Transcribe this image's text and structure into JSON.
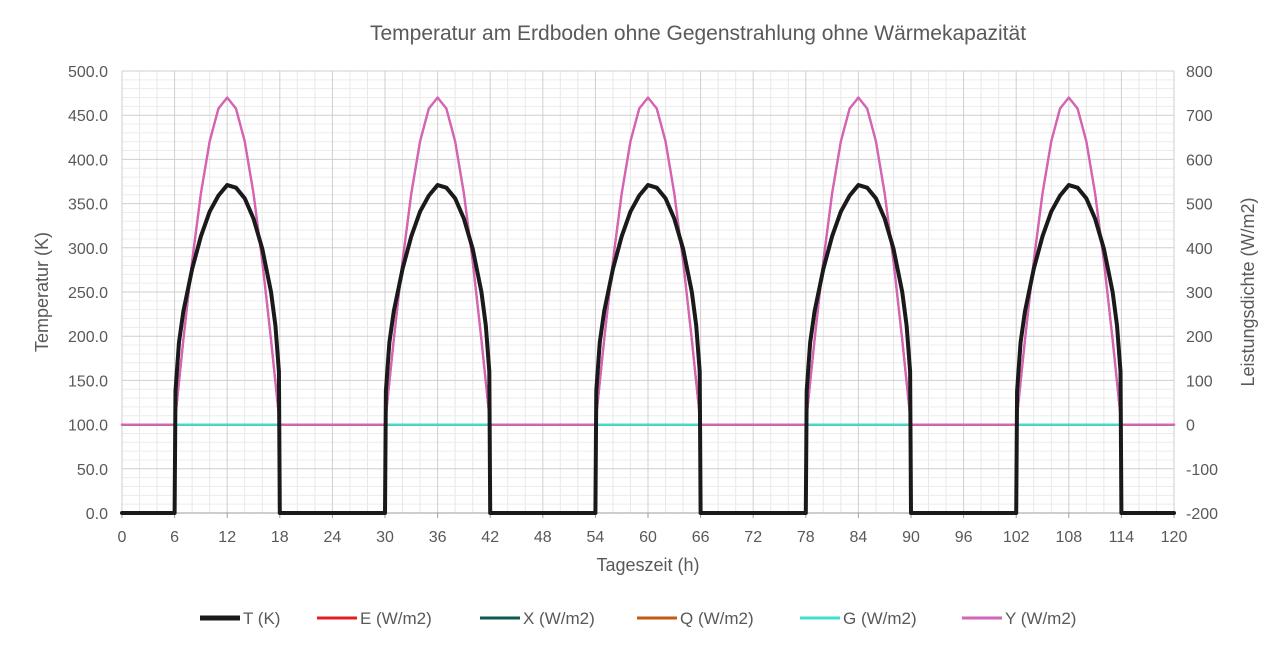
{
  "chart_data": {
    "type": "line",
    "title": "Temperatur am Erdboden ohne Gegenstrahlung ohne Wärmekapazität",
    "xlabel": "Tageszeit (h)",
    "ylabel_left": "Temperatur (K)",
    "ylabel_right": "Leistungsdichte  (W/m2)",
    "xlim": [
      0,
      120
    ],
    "x_ticks": [
      0,
      6,
      12,
      18,
      24,
      30,
      36,
      42,
      48,
      54,
      60,
      66,
      72,
      78,
      84,
      90,
      96,
      102,
      108,
      114,
      120
    ],
    "x_tick_labels": [
      "0",
      "6",
      "12",
      "18",
      "24",
      "30",
      "36",
      "42",
      "48",
      "54",
      "60",
      "66",
      "72",
      "78",
      "84",
      "90",
      "96",
      "102",
      "108",
      "114",
      "120"
    ],
    "ylim_left": [
      0,
      500
    ],
    "y_left_ticks": [
      0,
      50,
      100,
      150,
      200,
      250,
      300,
      350,
      400,
      450,
      500
    ],
    "y_left_tick_labels": [
      "0.0",
      "50.0",
      "100.0",
      "150.0",
      "200.0",
      "250.0",
      "300.0",
      "350.0",
      "400.0",
      "450.0",
      "500.0"
    ],
    "ylim_right": [
      -200,
      800
    ],
    "y_right_ticks": [
      -200,
      -100,
      0,
      100,
      200,
      300,
      400,
      500,
      600,
      700,
      800
    ],
    "y_right_tick_labels": [
      "-200",
      "-100",
      "0",
      "100",
      "200",
      "300",
      "400",
      "500",
      "600",
      "700",
      "800"
    ],
    "grid": true,
    "legend_position": "bottom",
    "series": [
      {
        "name": "T (K)",
        "axis": "left",
        "color": "#1a1a1a",
        "x": [
          0,
          6,
          6.1,
          6.5,
          7,
          8,
          9,
          10,
          11,
          12,
          13,
          14,
          15,
          16,
          17,
          17.5,
          17.9,
          18,
          24,
          30,
          30.1,
          30.5,
          31,
          32,
          33,
          34,
          35,
          36,
          37,
          38,
          39,
          40,
          41,
          41.5,
          41.9,
          42,
          48,
          54,
          54.1,
          54.5,
          55,
          56,
          57,
          58,
          59,
          60,
          61,
          62,
          63,
          64,
          65,
          65.5,
          65.9,
          66,
          72,
          78,
          78.1,
          78.5,
          79,
          80,
          81,
          82,
          83,
          84,
          85,
          86,
          87,
          88,
          89,
          89.5,
          89.9,
          90,
          96,
          102,
          102.1,
          102.5,
          103,
          104,
          105,
          106,
          107,
          108,
          109,
          110,
          111,
          112,
          113,
          113.5,
          113.9,
          114,
          120
        ],
        "values": [
          0,
          0,
          138,
          193,
          228,
          276,
          313,
          341,
          359,
          371,
          368,
          356,
          333,
          299,
          250,
          212,
          160,
          0,
          0,
          0,
          138,
          193,
          228,
          276,
          313,
          341,
          359,
          371,
          368,
          356,
          333,
          299,
          250,
          212,
          160,
          0,
          0,
          0,
          138,
          193,
          228,
          276,
          313,
          341,
          359,
          371,
          368,
          356,
          333,
          299,
          250,
          212,
          160,
          0,
          0,
          0,
          138,
          193,
          228,
          276,
          313,
          341,
          359,
          371,
          368,
          356,
          333,
          299,
          250,
          212,
          160,
          0,
          0,
          0,
          138,
          193,
          228,
          276,
          313,
          341,
          359,
          371,
          368,
          356,
          333,
          299,
          250,
          212,
          160,
          0,
          0
        ]
      },
      {
        "name": "E (W/m2)",
        "axis": "right",
        "color": "#e02020",
        "x": [
          0,
          6,
          7,
          8,
          9,
          10,
          11,
          12,
          13,
          14,
          15,
          16,
          17,
          18,
          30,
          31,
          32,
          33,
          34,
          35,
          36,
          37,
          38,
          39,
          40,
          41,
          42,
          54,
          55,
          56,
          57,
          58,
          59,
          60,
          61,
          62,
          63,
          64,
          65,
          66,
          78,
          79,
          80,
          81,
          82,
          83,
          84,
          85,
          86,
          87,
          88,
          89,
          90,
          102,
          103,
          104,
          105,
          106,
          107,
          108,
          109,
          110,
          111,
          112,
          113,
          114,
          120
        ],
        "values": [
          0,
          0,
          192,
          370,
          523,
          641,
          715,
          740,
          715,
          641,
          523,
          370,
          192,
          0,
          0,
          192,
          370,
          523,
          641,
          715,
          740,
          715,
          641,
          523,
          370,
          192,
          0,
          0,
          192,
          370,
          523,
          641,
          715,
          740,
          715,
          641,
          523,
          370,
          192,
          0,
          0,
          192,
          370,
          523,
          641,
          715,
          740,
          715,
          641,
          523,
          370,
          192,
          0,
          0,
          192,
          370,
          523,
          641,
          715,
          740,
          715,
          641,
          523,
          370,
          192,
          0,
          0
        ]
      },
      {
        "name": "X (W/m2)",
        "axis": "right",
        "color": "#0b5a4f",
        "x": [
          0,
          120
        ],
        "values": [
          0,
          0
        ]
      },
      {
        "name": "Q (W/m2)",
        "axis": "right",
        "color": "#c55a11",
        "x": [
          0,
          120
        ],
        "values": [
          0,
          0
        ]
      },
      {
        "name": "G (W/m2)",
        "axis": "right",
        "color": "#40e0d0",
        "x": [
          0,
          120
        ],
        "values": [
          0,
          0
        ]
      },
      {
        "name": "Y (W/m2)",
        "axis": "right",
        "color": "#d265b8",
        "x": [
          0,
          6,
          7,
          8,
          9,
          10,
          11,
          12,
          13,
          14,
          15,
          16,
          17,
          18,
          30,
          31,
          32,
          33,
          34,
          35,
          36,
          37,
          38,
          39,
          40,
          41,
          42,
          54,
          55,
          56,
          57,
          58,
          59,
          60,
          61,
          62,
          63,
          64,
          65,
          66,
          78,
          79,
          80,
          81,
          82,
          83,
          84,
          85,
          86,
          87,
          88,
          89,
          90,
          102,
          103,
          104,
          105,
          106,
          107,
          108,
          109,
          110,
          111,
          112,
          113,
          114,
          120
        ],
        "values": [
          0,
          0,
          192,
          370,
          523,
          641,
          715,
          740,
          715,
          641,
          523,
          370,
          192,
          0,
          0,
          192,
          370,
          523,
          641,
          715,
          740,
          715,
          641,
          523,
          370,
          192,
          0,
          0,
          192,
          370,
          523,
          641,
          715,
          740,
          715,
          641,
          523,
          370,
          192,
          0,
          0,
          192,
          370,
          523,
          641,
          715,
          740,
          715,
          641,
          523,
          370,
          192,
          0,
          0,
          192,
          370,
          523,
          641,
          715,
          740,
          715,
          641,
          523,
          370,
          192,
          0,
          0
        ]
      }
    ]
  }
}
